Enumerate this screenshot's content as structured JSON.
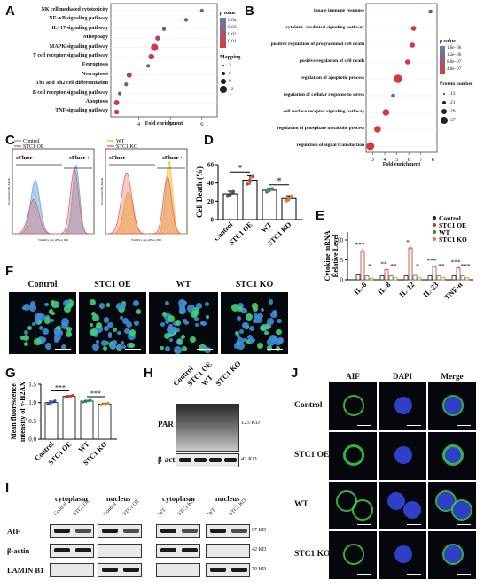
{
  "panels": {
    "A": {
      "label": "A",
      "terms": [
        "NK cell mediated cytotoxicity",
        "NF−κB signaling pathway",
        "IL−17 signaling pathway",
        "Mitophagy",
        "MAPK signaling pathway",
        "T cell receptor signaling pathway",
        "Ferroptosis",
        "Necroptosis",
        "Th1 and Th2 cell differentiation",
        "B cell receptor signaling pathway",
        "Apoptosis",
        "TNF signaling pathway"
      ],
      "xlabel": "Fold enrichment",
      "xticks": [
        "4",
        "5",
        "6"
      ],
      "legend_pvalue_title": "p value",
      "legend_pvalue_ticks": [
        "0.04",
        "0.03",
        "0.02",
        "0.01"
      ],
      "legend_size_title": "Mapping",
      "legend_size_ticks": [
        "3",
        "6",
        "9",
        "12"
      ]
    },
    "B": {
      "label": "B",
      "terms": [
        "innate immune response",
        "cytokine−mediated signaling pathway",
        "positive regulation of programmed cell death",
        "positive regulation of cell death",
        "regulation of apoptotic process",
        "regulation of cellular response to stress",
        "cell surface receptor signaling pathway",
        "regulation of phosphate metabolic process",
        "regulation of signal transduction"
      ],
      "xlabel": "Fold enrichment",
      "xticks": [
        "3",
        "4",
        "5",
        "6",
        "7",
        "8"
      ],
      "legend_pvalue_title": "p value",
      "legend_pvalue_ticks": [
        "1.6e−06",
        "1.2e−06",
        "8.0e−07",
        "4.0e−07"
      ],
      "legend_size_title": "Protein number",
      "legend_size_ticks": [
        "13",
        "21",
        "29",
        "37"
      ]
    },
    "C": {
      "label": "C",
      "legend_left": [
        "Control",
        "STC1 OE"
      ],
      "legend_right": [
        "WT",
        "STC1 KO"
      ],
      "gate_neg": "cFluor -",
      "gate_pos": "cFluor +",
      "ylabel": "Normalized To Mode",
      "xlabel": "Viability dye eFluor 660"
    },
    "D": {
      "label": "D",
      "ylabel": "Cell Death (%)",
      "yticks": [
        "0",
        "20",
        "40",
        "60"
      ],
      "groups": [
        "Control",
        "STC1 OE",
        "WT",
        "STC1 KO"
      ],
      "sig": [
        "*",
        "*"
      ]
    },
    "E": {
      "label": "E",
      "ylabel1": "Cytokine mRNA",
      "ylabel2": "Relative Level",
      "yticks": [
        "0",
        "5",
        "10"
      ],
      "genes": [
        "IL-6",
        "IL-8",
        "IL-12",
        "IL-23",
        "TNF-α"
      ],
      "legend": [
        "Control",
        "STC1 OE",
        "WT",
        "STC1 KO"
      ],
      "sig": [
        "***",
        "*",
        "**",
        "**",
        "*",
        "*",
        "***",
        "**",
        "***",
        "***"
      ]
    },
    "F": {
      "label": "F",
      "titles": [
        "Control",
        "STC1 OE",
        "WT",
        "STC1 KO"
      ]
    },
    "G": {
      "label": "G",
      "ylabel1": "Mean fluorescence",
      "ylabel2": "intensity of γ-H2AX",
      "yticks": [
        "0.0",
        "0.5",
        "1.0",
        "1.5"
      ],
      "groups": [
        "Control",
        "STC1 OE",
        "WT",
        "STC1 KO"
      ],
      "sig": [
        "***",
        "***"
      ]
    },
    "H": {
      "label": "H",
      "lanes": [
        "Control",
        "STC1 OE",
        "WT",
        "STC1 KO"
      ],
      "rows": [
        "PAR",
        "β-actin"
      ],
      "sizes": [
        "125 KD",
        "42 KD"
      ]
    },
    "I": {
      "label": "I",
      "fractions": [
        "cytoplasm",
        "nucleus",
        "cytoplasm",
        "nucleus"
      ],
      "lanes": [
        "Control",
        "STC1 OE",
        "Control",
        "STC1 OE",
        "WT",
        "STC1 KO",
        "WT",
        "STC1 KO"
      ],
      "rows": [
        "AIF",
        "β-actin",
        "LAMIN B1"
      ],
      "sizes": [
        "67 KD",
        "42 KD",
        "70 KD"
      ]
    },
    "J": {
      "label": "J",
      "columns": [
        "AIF",
        "DAPI",
        "Merge"
      ],
      "rows": [
        "Control",
        "STC1 OE",
        "WT",
        "STC1 KO"
      ]
    }
  },
  "chart_data": [
    {
      "type": "scatter",
      "panel": "A",
      "xlabel": "Fold enrichment",
      "xlim": [
        3.2,
        6.4
      ],
      "categories": [
        "NK cell mediated cytotoxicity",
        "NF−κB signaling pathway",
        "IL−17 signaling pathway",
        "Mitophagy",
        "MAPK signaling pathway",
        "T cell receptor signaling pathway",
        "Ferroptosis",
        "Necroptosis",
        "Th1 and Th2 cell differentiation",
        "B cell receptor signaling pathway",
        "Apoptosis",
        "TNF signaling pathway"
      ],
      "x": [
        6.0,
        5.5,
        4.8,
        4.6,
        4.5,
        4.4,
        4.3,
        3.7,
        3.6,
        3.4,
        3.3,
        3.3
      ],
      "size": [
        4,
        4,
        4,
        6,
        11,
        8,
        4,
        7,
        4,
        4,
        7,
        6
      ],
      "pvalue": [
        0.04,
        0.04,
        0.03,
        0.02,
        0.005,
        0.01,
        0.035,
        0.01,
        0.04,
        0.04,
        0.01,
        0.01
      ]
    },
    {
      "type": "scatter",
      "panel": "B",
      "xlabel": "Fold enrichment",
      "xlim": [
        2.6,
        8.2
      ],
      "categories": [
        "innate immune response",
        "cytokine−mediated signaling pathway",
        "positive regulation of programmed cell death",
        "positive regulation of cell death",
        "regulation of apoptotic process",
        "regulation of cellular response to stress",
        "cell surface receptor signaling pathway",
        "regulation of phosphate metabolic process",
        "regulation of signal transduction"
      ],
      "x": [
        7.8,
        6.4,
        6.3,
        5.9,
        5.1,
        4.7,
        4.1,
        3.4,
        2.8
      ],
      "size": [
        13,
        18,
        18,
        18,
        37,
        13,
        28,
        28,
        35
      ],
      "pvalue": [
        1.6e-06,
        4e-07,
        4e-07,
        4e-07,
        4e-07,
        1.6e-06,
        4e-07,
        4e-07,
        4e-07
      ]
    },
    {
      "type": "bar",
      "panel": "D",
      "ylabel": "Cell Death (%)",
      "ylim": [
        0,
        60
      ],
      "categories": [
        "Control",
        "STC1 OE",
        "WT",
        "STC1 KO"
      ],
      "values": [
        28,
        43,
        32,
        23
      ],
      "errors": [
        3,
        5,
        2,
        3
      ]
    },
    {
      "type": "bar",
      "panel": "E",
      "ylabel": "Cytokine mRNA Relative Level",
      "ylim": [
        0,
        12
      ],
      "categories": [
        "IL-6",
        "IL-8",
        "IL-12",
        "IL-23",
        "TNF-α"
      ],
      "series": [
        {
          "name": "Control",
          "values": [
            1.2,
            1.0,
            1.0,
            1.0,
            1.0
          ]
        },
        {
          "name": "STC1 OE",
          "values": [
            7.3,
            2.6,
            8.0,
            3.3,
            3.0
          ]
        },
        {
          "name": "WT",
          "values": [
            1.0,
            1.0,
            1.1,
            1.0,
            1.0
          ]
        },
        {
          "name": "STC1 KO",
          "values": [
            0.4,
            0.6,
            0.5,
            0.6,
            0.5
          ]
        }
      ]
    },
    {
      "type": "bar",
      "panel": "G",
      "ylabel": "Mean fluorescence intensity of γ-H2AX",
      "ylim": [
        0,
        1.5
      ],
      "categories": [
        "Control",
        "STC1 OE",
        "WT",
        "STC1 KO"
      ],
      "values": [
        1.0,
        1.17,
        1.04,
        0.96
      ],
      "errors": [
        0.04,
        0.02,
        0.02,
        0.02
      ]
    }
  ]
}
